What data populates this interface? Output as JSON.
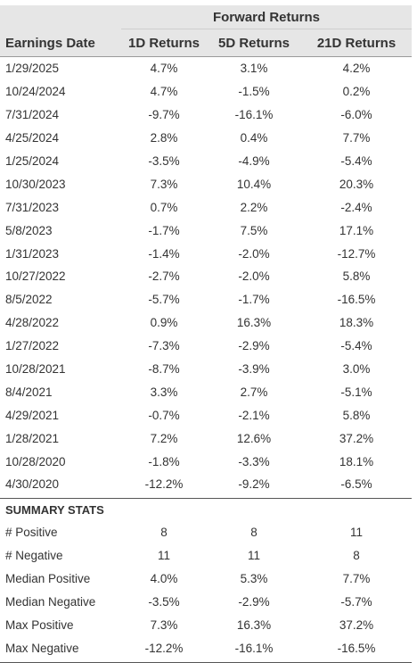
{
  "header": {
    "group_title": "Forward Returns",
    "columns": [
      "Earnings Date",
      "1D Returns",
      "5D Returns",
      "21D Returns"
    ]
  },
  "rows": [
    [
      "1/29/2025",
      "4.7%",
      "3.1%",
      "4.2%"
    ],
    [
      "10/24/2024",
      "4.7%",
      "-1.5%",
      "0.2%"
    ],
    [
      "7/31/2024",
      "-9.7%",
      "-16.1%",
      "-6.0%"
    ],
    [
      "4/25/2024",
      "2.8%",
      "0.4%",
      "7.7%"
    ],
    [
      "1/25/2024",
      "-3.5%",
      "-4.9%",
      "-5.4%"
    ],
    [
      "10/30/2023",
      "7.3%",
      "10.4%",
      "20.3%"
    ],
    [
      "7/31/2023",
      "0.7%",
      "2.2%",
      "-2.4%"
    ],
    [
      "5/8/2023",
      "-1.7%",
      "7.5%",
      "17.1%"
    ],
    [
      "1/31/2023",
      "-1.4%",
      "-2.0%",
      "-12.7%"
    ],
    [
      "10/27/2022",
      "-2.7%",
      "-2.0%",
      "5.8%"
    ],
    [
      "8/5/2022",
      "-5.7%",
      "-1.7%",
      "-16.5%"
    ],
    [
      "4/28/2022",
      "0.9%",
      "16.3%",
      "18.3%"
    ],
    [
      "1/27/2022",
      "-7.3%",
      "-2.9%",
      "-5.4%"
    ],
    [
      "10/28/2021",
      "-8.7%",
      "-3.9%",
      "3.0%"
    ],
    [
      "8/4/2021",
      "3.3%",
      "2.7%",
      "-5.1%"
    ],
    [
      "4/29/2021",
      "-0.7%",
      "-2.1%",
      "5.8%"
    ],
    [
      "1/28/2021",
      "7.2%",
      "12.6%",
      "37.2%"
    ],
    [
      "10/28/2020",
      "-1.8%",
      "-3.3%",
      "18.1%"
    ],
    [
      "4/30/2020",
      "-12.2%",
      "-9.2%",
      "-6.5%"
    ]
  ],
  "summary": {
    "title": "SUMMARY STATS",
    "rows": [
      [
        "# Positive",
        "8",
        "8",
        "11"
      ],
      [
        "# Negative",
        "11",
        "11",
        "8"
      ],
      [
        "Median Positive",
        "4.0%",
        "5.3%",
        "7.7%"
      ],
      [
        "Median Negative",
        "-3.5%",
        "-2.9%",
        "-5.7%"
      ],
      [
        "Max Positive",
        "7.3%",
        "16.3%",
        "37.2%"
      ],
      [
        "Max Negative",
        "-12.2%",
        "-16.1%",
        "-16.5%"
      ]
    ]
  }
}
